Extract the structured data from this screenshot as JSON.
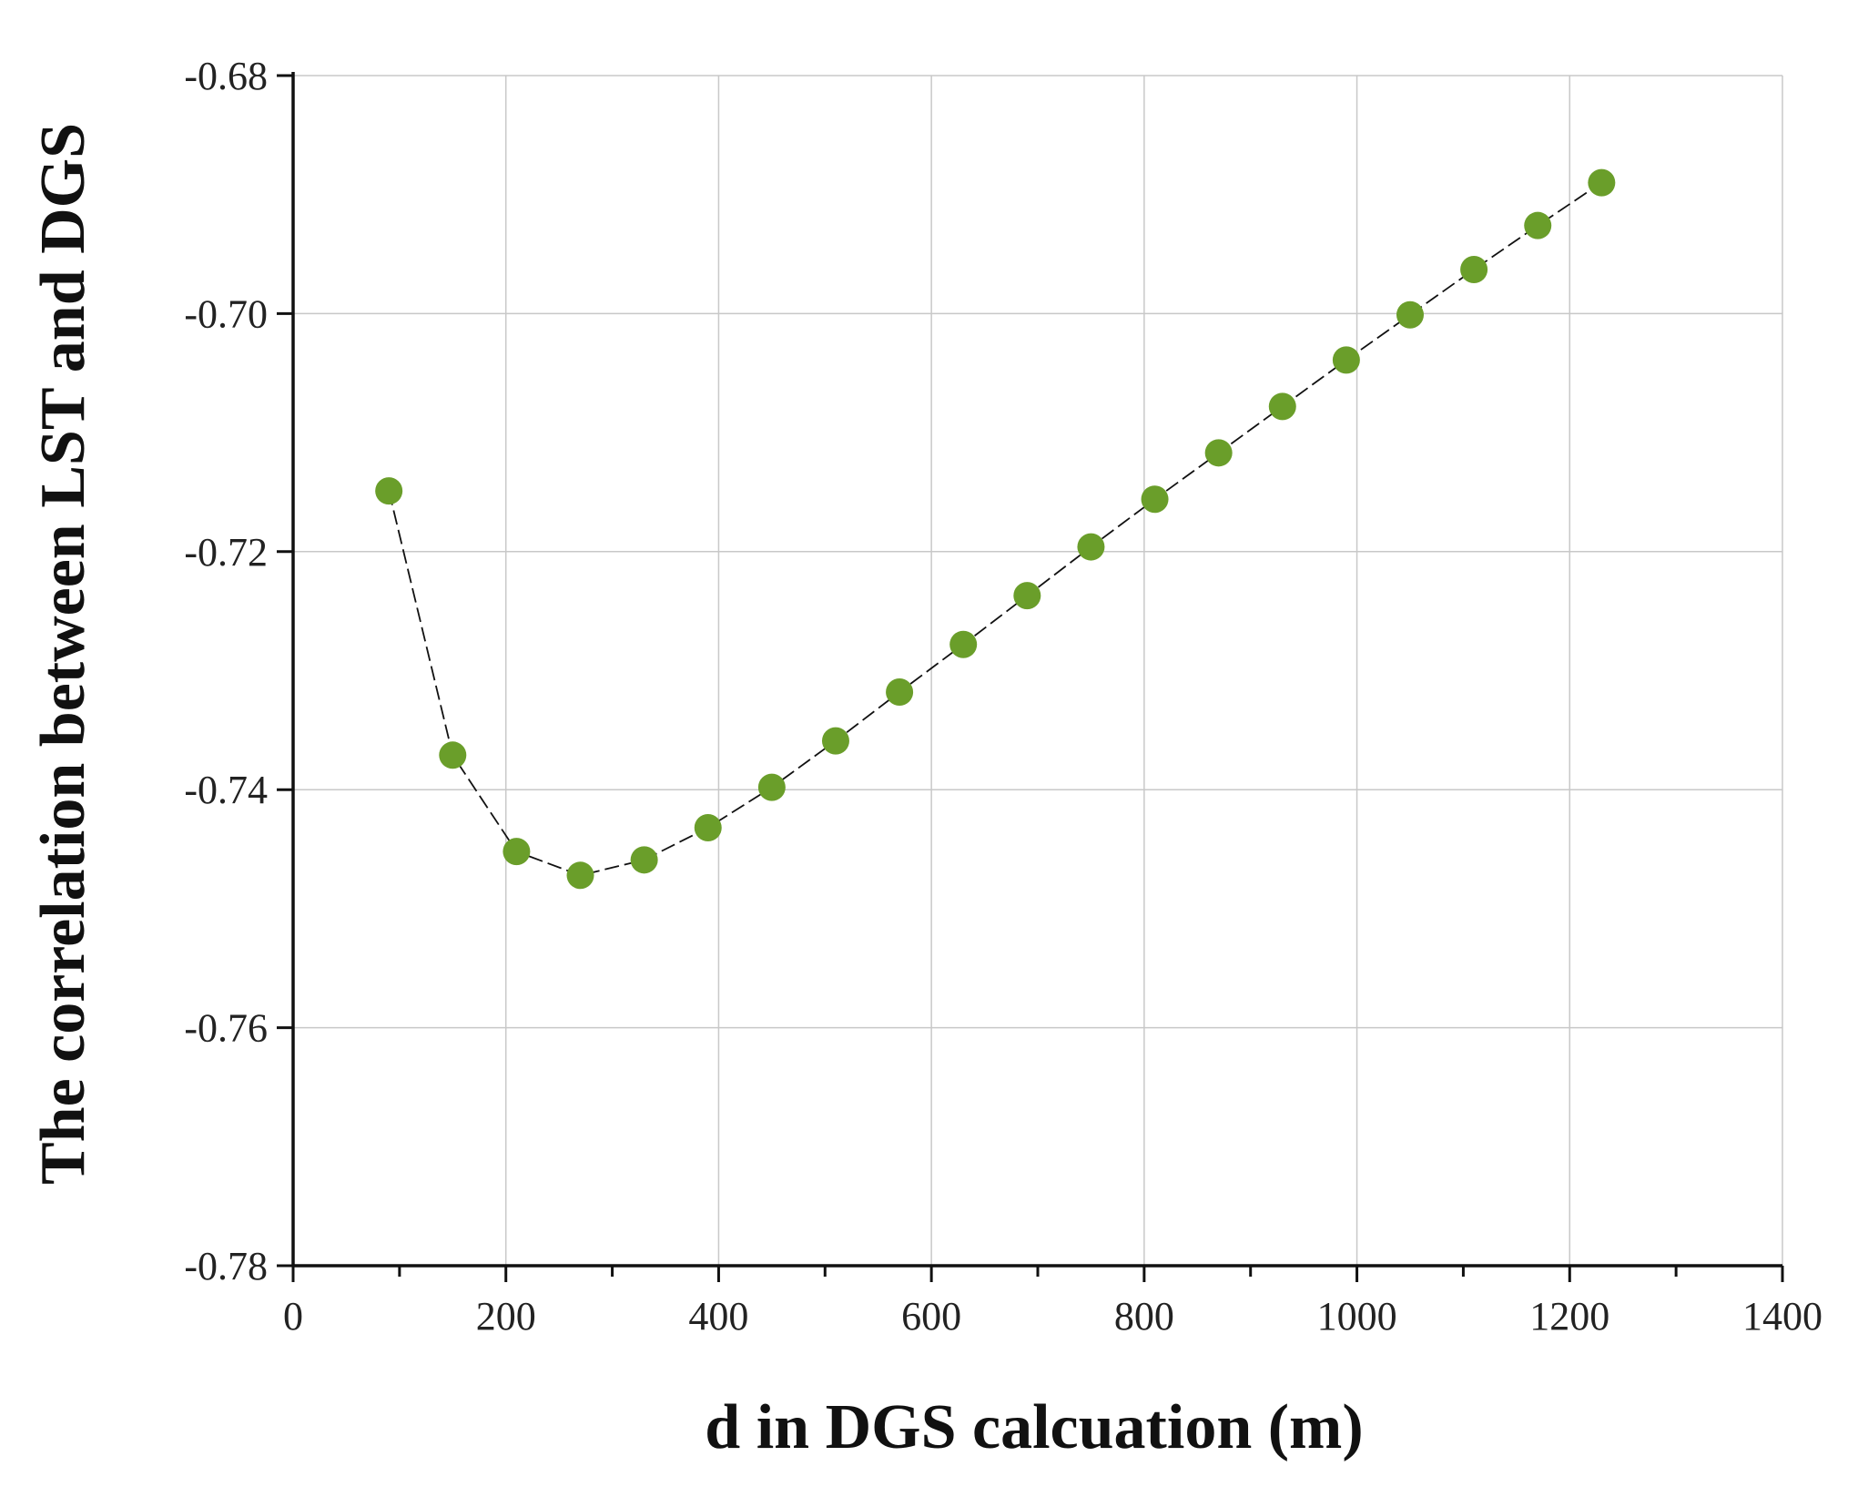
{
  "chart_data": {
    "type": "scatter",
    "title": "",
    "xlabel": "d in DGS calcuation (m)",
    "ylabel": "The correlation between LST and DGS",
    "xlim": [
      0,
      1400
    ],
    "ylim": [
      -0.78,
      -0.68
    ],
    "x_ticks": [
      "0",
      "200",
      "400",
      "600",
      "800",
      "1000",
      "1200",
      "1400"
    ],
    "y_ticks": [
      "-0.68",
      "-0.70",
      "-0.72",
      "-0.74",
      "-0.76",
      "-0.78"
    ],
    "grid": true,
    "legend": "none",
    "marker_color": "#6a9e2a",
    "line_color": "#111111",
    "line_style": "dashed",
    "series": [
      {
        "x": [
          90,
          150,
          210,
          270,
          330,
          390,
          450,
          510,
          570,
          630,
          690,
          750,
          810,
          870,
          930,
          990,
          1050,
          1110,
          1170,
          1230
        ],
        "y": [
          -0.7149,
          -0.7371,
          -0.7452,
          -0.7472,
          -0.7459,
          -0.7432,
          -0.7398,
          -0.7359,
          -0.7318,
          -0.7278,
          -0.7237,
          -0.7196,
          -0.7156,
          -0.7117,
          -0.7078,
          -0.7039,
          -0.7001,
          -0.6963,
          -0.6926,
          -0.689
        ]
      }
    ]
  }
}
